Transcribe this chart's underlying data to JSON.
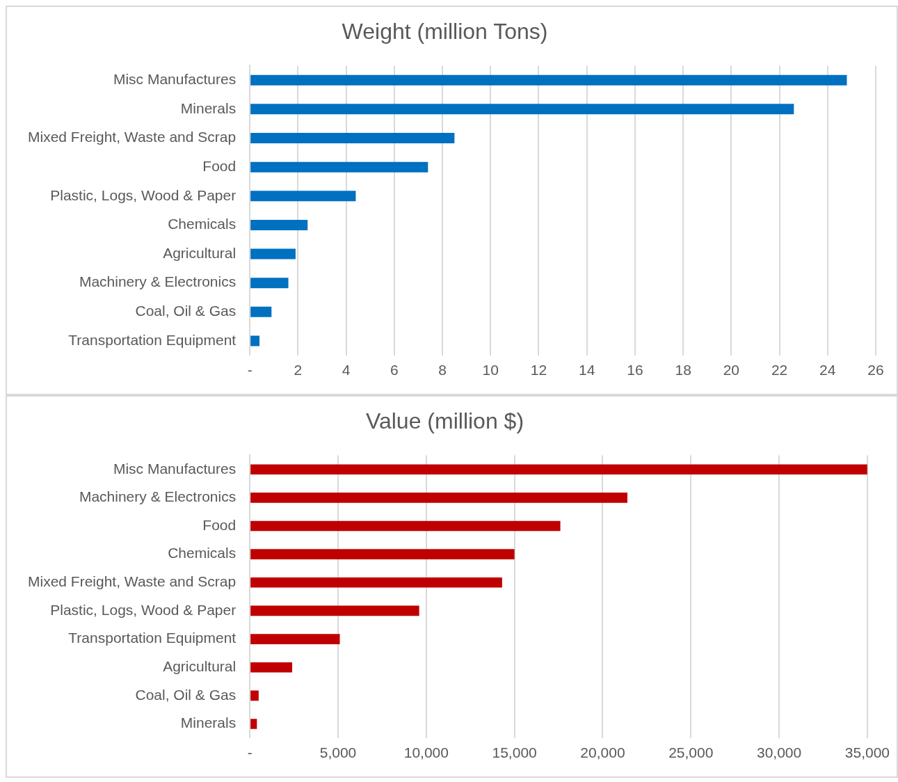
{
  "chart_data": [
    {
      "type": "bar",
      "orientation": "horizontal",
      "title": "Weight (million Tons)",
      "categories": [
        "Misc Manufactures",
        "Minerals",
        "Mixed Freight, Waste and Scrap",
        "Food",
        "Plastic, Logs, Wood & Paper",
        "Chemicals",
        "Agricultural",
        "Machinery & Electronics",
        "Coal, Oil & Gas",
        "Transportation Equipment"
      ],
      "values": [
        24.8,
        22.6,
        8.5,
        7.4,
        4.4,
        2.4,
        1.9,
        1.6,
        0.9,
        0.4
      ],
      "color": "#0070c0",
      "xlim": [
        0,
        26
      ],
      "xticks": [
        {
          "value": 0,
          "label": "-"
        },
        2,
        4,
        6,
        8,
        10,
        12,
        14,
        16,
        18,
        20,
        22,
        24,
        26
      ],
      "grid": "x",
      "legend": false
    },
    {
      "type": "bar",
      "orientation": "horizontal",
      "title": "Value (million $)",
      "categories": [
        "Misc Manufactures",
        "Machinery & Electronics",
        "Food",
        "Chemicals",
        "Mixed Freight, Waste and Scrap",
        "Plastic, Logs, Wood & Paper",
        "Transportation Equipment",
        "Agricultural",
        "Coal, Oil & Gas",
        "Minerals"
      ],
      "values": [
        35000,
        21400,
        17600,
        15000,
        14300,
        9600,
        5100,
        2400,
        500,
        400
      ],
      "color": "#c00000",
      "xlim": [
        0,
        35000
      ],
      "xticks": [
        {
          "value": 0,
          "label": "-"
        },
        {
          "value": 5000,
          "label": "5,000"
        },
        {
          "value": 10000,
          "label": "10,000"
        },
        {
          "value": 15000,
          "label": "15,000"
        },
        {
          "value": 20000,
          "label": "20,000"
        },
        {
          "value": 25000,
          "label": "25,000"
        },
        {
          "value": 30000,
          "label": "30,000"
        },
        {
          "value": 35000,
          "label": "35,000"
        }
      ],
      "grid": "x",
      "legend": false
    }
  ]
}
